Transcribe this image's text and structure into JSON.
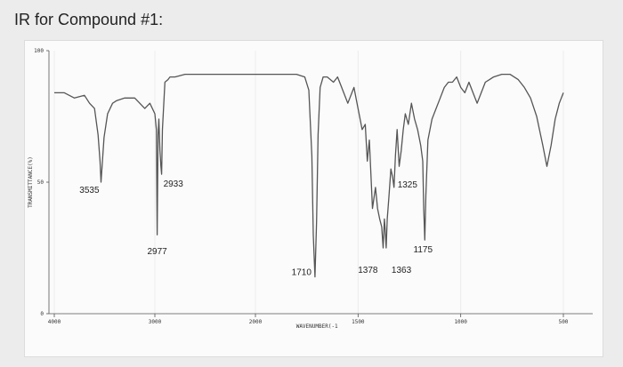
{
  "heading": "IR for Compound #1:",
  "chart_data": {
    "type": "line",
    "title": "",
    "xlabel": "WAVENUMBER(-1",
    "ylabel": "TRANSMITTANCE(%)",
    "xlim": [
      4000,
      500
    ],
    "ylim": [
      0,
      100
    ],
    "x_ticks": [
      4000,
      3000,
      2000,
      1500,
      1000,
      500
    ],
    "x_tick_labels": [
      "4000",
      "3000",
      "2000",
      "1500",
      "1000",
      "500"
    ],
    "y_ticks": [
      0,
      50,
      100
    ],
    "y_tick_labels": [
      "0",
      "50",
      "100"
    ],
    "grid": true,
    "series": [
      {
        "x": [
          4000,
          3900,
          3800,
          3700,
          3650,
          3600,
          3565,
          3545,
          3535,
          3525,
          3505,
          3470,
          3420,
          3380,
          3300,
          3200,
          3100,
          3050,
          3000,
          2985,
          2977,
          2968,
          2960,
          2950,
          2940,
          2933,
          2925,
          2900,
          2870,
          2850,
          2800,
          2700,
          2500,
          2300,
          2100,
          1900,
          1800,
          1760,
          1740,
          1725,
          1718,
          1710,
          1702,
          1695,
          1685,
          1670,
          1650,
          1620,
          1600,
          1580,
          1550,
          1520,
          1500,
          1480,
          1465,
          1455,
          1445,
          1430,
          1415,
          1405,
          1395,
          1385,
          1378,
          1372,
          1368,
          1363,
          1358,
          1350,
          1340,
          1332,
          1325,
          1318,
          1310,
          1300,
          1290,
          1280,
          1270,
          1255,
          1240,
          1225,
          1210,
          1195,
          1185,
          1180,
          1175,
          1170,
          1160,
          1140,
          1120,
          1100,
          1080,
          1060,
          1040,
          1020,
          1000,
          980,
          960,
          940,
          920,
          900,
          880,
          860,
          840,
          800,
          760,
          720,
          690,
          660,
          630,
          600,
          580,
          560,
          540,
          520,
          500
        ],
        "y": [
          84,
          84,
          82,
          83,
          80,
          78,
          68,
          58,
          50,
          56,
          67,
          76,
          80,
          81,
          82,
          82,
          78,
          80,
          76,
          70,
          30,
          68,
          74,
          62,
          56,
          53,
          70,
          88,
          89,
          90,
          90,
          91,
          91,
          91,
          91,
          91,
          91,
          90,
          85,
          60,
          30,
          14,
          35,
          68,
          86,
          90,
          90,
          88,
          90,
          86,
          80,
          86,
          78,
          70,
          72,
          58,
          66,
          40,
          48,
          40,
          36,
          33,
          25,
          36,
          32,
          25,
          36,
          44,
          55,
          52,
          48,
          60,
          70,
          56,
          62,
          70,
          76,
          72,
          80,
          74,
          70,
          64,
          58,
          40,
          28,
          45,
          66,
          74,
          78,
          82,
          86,
          88,
          88,
          90,
          86,
          84,
          88,
          84,
          80,
          84,
          88,
          89,
          90,
          91,
          91,
          89,
          86,
          82,
          75,
          64,
          56,
          64,
          74,
          80,
          84
        ]
      }
    ],
    "annotations": [
      {
        "text": "3535",
        "x": 3535,
        "y": 50
      },
      {
        "text": "2977",
        "x": 2977,
        "y": 30
      },
      {
        "text": "2933",
        "x": 2933,
        "y": 53
      },
      {
        "text": "1710",
        "x": 1710,
        "y": 14
      },
      {
        "text": "1378",
        "x": 1378,
        "y": 25
      },
      {
        "text": "1363",
        "x": 1363,
        "y": 25
      },
      {
        "text": "1325",
        "x": 1325,
        "y": 48
      },
      {
        "text": "1175",
        "x": 1175,
        "y": 28
      }
    ]
  }
}
